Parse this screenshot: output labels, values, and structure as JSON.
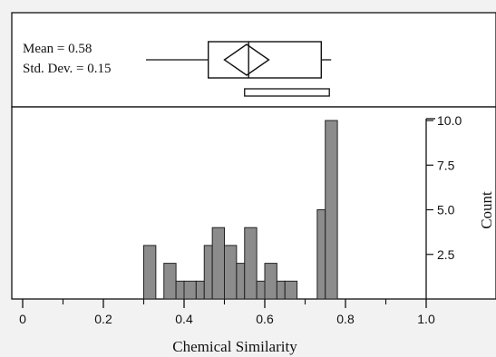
{
  "chart_data": {
    "type": "bar",
    "subtype": "histogram-with-boxplot",
    "title": "",
    "xlabel": "Chemical Similarity",
    "ylabel": "Count",
    "xlim": [
      0,
      1.0
    ],
    "ylim": [
      0,
      10.0
    ],
    "x_ticks": [
      "0",
      "0.2",
      "0.4",
      "0.6",
      "0.8",
      "1.0"
    ],
    "y_ticks": [
      "2.5",
      "5.0",
      "7.5",
      "10.0"
    ],
    "y_axis_position": "right",
    "grid": false,
    "bar_color": "#8c8c8c",
    "bar_edge_color": "#222222",
    "bins": [
      {
        "x0": 0.3,
        "x1": 0.33,
        "count": 3
      },
      {
        "x0": 0.35,
        "x1": 0.38,
        "count": 2
      },
      {
        "x0": 0.38,
        "x1": 0.4,
        "count": 1
      },
      {
        "x0": 0.4,
        "x1": 0.43,
        "count": 1
      },
      {
        "x0": 0.43,
        "x1": 0.45,
        "count": 1
      },
      {
        "x0": 0.45,
        "x1": 0.47,
        "count": 3
      },
      {
        "x0": 0.47,
        "x1": 0.5,
        "count": 4
      },
      {
        "x0": 0.5,
        "x1": 0.53,
        "count": 3
      },
      {
        "x0": 0.53,
        "x1": 0.55,
        "count": 2
      },
      {
        "x0": 0.55,
        "x1": 0.58,
        "count": 4
      },
      {
        "x0": 0.58,
        "x1": 0.6,
        "count": 1
      },
      {
        "x0": 0.6,
        "x1": 0.63,
        "count": 2
      },
      {
        "x0": 0.63,
        "x1": 0.65,
        "count": 1
      },
      {
        "x0": 0.65,
        "x1": 0.68,
        "count": 1
      },
      {
        "x0": 0.73,
        "x1": 0.75,
        "count": 5
      },
      {
        "x0": 0.75,
        "x1": 0.78,
        "count": 10
      }
    ],
    "boxplot": {
      "whisker_low": 0.3,
      "q1": 0.46,
      "median": 0.56,
      "q3": 0.74,
      "whisker_high": 0.76,
      "mean": 0.58,
      "mean_diamond_low": 0.5,
      "mean_diamond_high": 0.61,
      "shortest_half": [
        0.55,
        0.76
      ]
    },
    "annotations": {
      "mean": "Mean = 0.58",
      "std_dev": "Std. Dev. = 0.15"
    }
  }
}
